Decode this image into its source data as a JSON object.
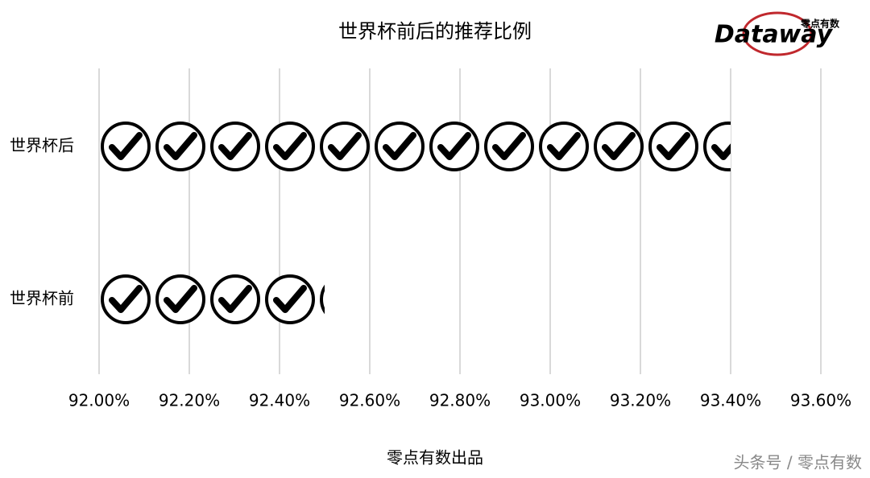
{
  "chart_data": {
    "type": "pictograph-bar",
    "title": "世界杯前后的推荐比例",
    "categories": [
      "世界杯后",
      "世界杯前"
    ],
    "values": [
      93.4,
      92.5
    ],
    "color": "#000000",
    "xlim": [
      92,
      93.6
    ],
    "xticks": [
      {
        "value": 92,
        "label": "92.00%"
      },
      {
        "value": 92.2,
        "label": "92.20%"
      },
      {
        "value": 92.4,
        "label": "92.40%"
      },
      {
        "value": 92.6,
        "label": "92.60%"
      },
      {
        "value": 92.8,
        "label": "92.80%"
      },
      {
        "value": 93,
        "label": "93.00%"
      },
      {
        "value": 93.2,
        "label": "93.20%"
      },
      {
        "value": 93.4,
        "label": "93.40%"
      },
      {
        "value": 93.6,
        "label": "93.60%"
      }
    ],
    "grid": true,
    "xlabel": "零点有数出品",
    "logo": {
      "name": "Dataway",
      "subtitle": "零点有数"
    },
    "watermark": "头条号 / 零点有数"
  }
}
